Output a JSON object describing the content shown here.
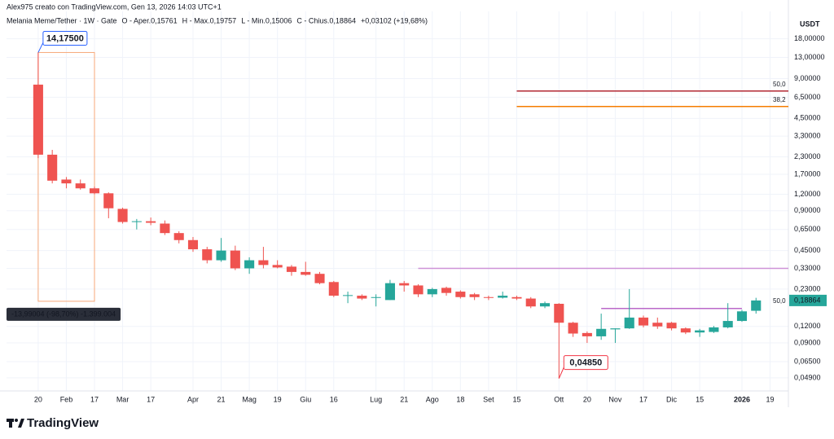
{
  "chart_data": {
    "type": "candlestick",
    "title": "Alex975 creato con TradingView.com, Gen 13, 2026 14:03 UTC+1",
    "symbol": "Melania Meme/Tether · 1W · Gate",
    "legend": [
      {
        "key": "O - Aper.",
        "text": "0,15761"
      },
      {
        "key": "H - Max.",
        "text": "0,19757"
      },
      {
        "key": "L - Min.",
        "text": "0,15006"
      },
      {
        "key": "C - Chius.",
        "text": "0,18864"
      },
      {
        "key": "",
        "text": "+0,03102 (+19,68%)"
      }
    ],
    "currency": "USDT",
    "brand": "TradingView",
    "up_color": "#26a69a",
    "down_color": "#ef5350",
    "log_scale": true,
    "grid": true,
    "ylim": [
      0.039,
      29
    ],
    "xlim": [
      -2.25,
      53.3
    ],
    "yticks": [
      {
        "value": 18,
        "label": "18,00000"
      },
      {
        "value": 13,
        "label": "13,00000"
      },
      {
        "value": 9,
        "label": "9,00000"
      },
      {
        "value": 6.5,
        "label": "6,50000"
      },
      {
        "value": 4.5,
        "label": "4,50000"
      },
      {
        "value": 3.3,
        "label": "3,30000"
      },
      {
        "value": 2.3,
        "label": "2,30000"
      },
      {
        "value": 1.7,
        "label": "1,70000"
      },
      {
        "value": 1.2,
        "label": "1,20000"
      },
      {
        "value": 0.9,
        "label": "0,90000"
      },
      {
        "value": 0.65,
        "label": "0,65000"
      },
      {
        "value": 0.45,
        "label": "0,45000"
      },
      {
        "value": 0.33,
        "label": "0,33000"
      },
      {
        "value": 0.23,
        "label": "0,23000"
      },
      {
        "value": 0.12,
        "label": "0,12000"
      },
      {
        "value": 0.09,
        "label": "0,09000"
      },
      {
        "value": 0.065,
        "label": "0,06500"
      },
      {
        "value": 0.049,
        "label": "0,04900"
      }
    ],
    "xticks": [
      {
        "value": 0,
        "label": "20"
      },
      {
        "value": 2,
        "label": "Feb"
      },
      {
        "value": 4,
        "label": "17"
      },
      {
        "value": 6,
        "label": "Mar"
      },
      {
        "value": 8,
        "label": "17"
      },
      {
        "value": 11,
        "label": "Apr"
      },
      {
        "value": 13,
        "label": "21"
      },
      {
        "value": 15,
        "label": "Mag"
      },
      {
        "value": 17,
        "label": "19"
      },
      {
        "value": 19,
        "label": "Giu"
      },
      {
        "value": 21,
        "label": "16"
      },
      {
        "value": 24,
        "label": "Lug"
      },
      {
        "value": 26,
        "label": "21"
      },
      {
        "value": 28,
        "label": "Ago"
      },
      {
        "value": 30,
        "label": "18"
      },
      {
        "value": 32,
        "label": "Set"
      },
      {
        "value": 34,
        "label": "15"
      },
      {
        "value": 37,
        "label": "Ott"
      },
      {
        "value": 39,
        "label": "20"
      },
      {
        "value": 41,
        "label": "Nov"
      },
      {
        "value": 43,
        "label": "17"
      },
      {
        "value": 45,
        "label": "Dic"
      },
      {
        "value": 47,
        "label": "15"
      },
      {
        "value": 50,
        "label": "2026"
      },
      {
        "value": 52,
        "label": "19"
      }
    ],
    "open": [
      8.1,
      2.39,
      1.55,
      1.45,
      1.33,
      1.22,
      0.93,
      0.74,
      0.75,
      0.72,
      0.61,
      0.54,
      0.46,
      0.38,
      0.45,
      0.33,
      0.38,
      0.35,
      0.34,
      0.31,
      0.3,
      0.26,
      0.205,
      0.205,
      0.198,
      0.19,
      0.255,
      0.245,
      0.21,
      0.235,
      0.22,
      0.21,
      0.2,
      0.198,
      0.2,
      0.195,
      0.17,
      0.178,
      0.128,
      0.107,
      0.101,
      0.114,
      0.116,
      0.14,
      0.128,
      0.128,
      0.116,
      0.108,
      0.109,
      0.118,
      0.132,
      0.15761
    ],
    "high": [
      14.175,
      2.6,
      1.62,
      1.55,
      1.37,
      1.24,
      0.95,
      0.78,
      0.8,
      0.76,
      0.63,
      0.57,
      0.48,
      0.56,
      0.49,
      0.4,
      0.48,
      0.38,
      0.35,
      0.37,
      0.31,
      0.265,
      0.22,
      0.21,
      0.21,
      0.27,
      0.265,
      0.25,
      0.235,
      0.24,
      0.225,
      0.215,
      0.205,
      0.22,
      0.205,
      0.2,
      0.185,
      0.18,
      0.13,
      0.11,
      0.15,
      0.116,
      0.23,
      0.145,
      0.14,
      0.13,
      0.118,
      0.115,
      0.121,
      0.18,
      0.16,
      0.19757
    ],
    "low": [
      2.25,
      1.45,
      1.33,
      1.3,
      1.2,
      0.79,
      0.72,
      0.65,
      0.7,
      0.59,
      0.51,
      0.44,
      0.36,
      0.37,
      0.32,
      0.3,
      0.33,
      0.33,
      0.29,
      0.29,
      0.25,
      0.2,
      0.18,
      0.19,
      0.17,
      0.19,
      0.22,
      0.2,
      0.2,
      0.205,
      0.195,
      0.19,
      0.19,
      0.195,
      0.19,
      0.165,
      0.165,
      0.0485,
      0.1,
      0.09,
      0.095,
      0.09,
      0.115,
      0.118,
      0.115,
      0.112,
      0.105,
      0.1,
      0.107,
      0.116,
      0.13,
      0.15006
    ],
    "close": [
      2.39,
      1.52,
      1.45,
      1.33,
      1.22,
      0.94,
      0.74,
      0.75,
      0.73,
      0.61,
      0.54,
      0.46,
      0.38,
      0.45,
      0.33,
      0.38,
      0.35,
      0.335,
      0.31,
      0.295,
      0.255,
      0.205,
      0.207,
      0.195,
      0.2,
      0.255,
      0.245,
      0.21,
      0.23,
      0.215,
      0.2,
      0.2,
      0.198,
      0.205,
      0.195,
      0.17,
      0.18,
      0.128,
      0.106,
      0.101,
      0.115,
      0.116,
      0.14,
      0.122,
      0.12,
      0.116,
      0.108,
      0.112,
      0.118,
      0.132,
      0.156,
      0.18864
    ],
    "levels": [
      {
        "value": 7.25,
        "start": 34,
        "color": "#b22833",
        "label": "50,0"
      },
      {
        "value": 5.53,
        "start": 34,
        "color": "#f57c00",
        "label": "38,2"
      },
      {
        "value": 0.33,
        "start": 27,
        "color": "#ce93d8"
      },
      {
        "value": 0.164,
        "start": 40,
        "end": 50,
        "color": "#ba68c8",
        "label": "50,0"
      }
    ],
    "measure": {
      "start": 0,
      "end": 4,
      "high": 14.175,
      "low": 0.186,
      "label": "-13,99004 (-98,70%) -1.399.004"
    },
    "callouts": [
      {
        "index": 0,
        "value": 14.175,
        "label": "14,17500"
      },
      {
        "index": 37,
        "value": 0.0485,
        "label": "0,04850"
      }
    ],
    "last_price": {
      "value": 0.18864,
      "label": "0,18864"
    }
  }
}
